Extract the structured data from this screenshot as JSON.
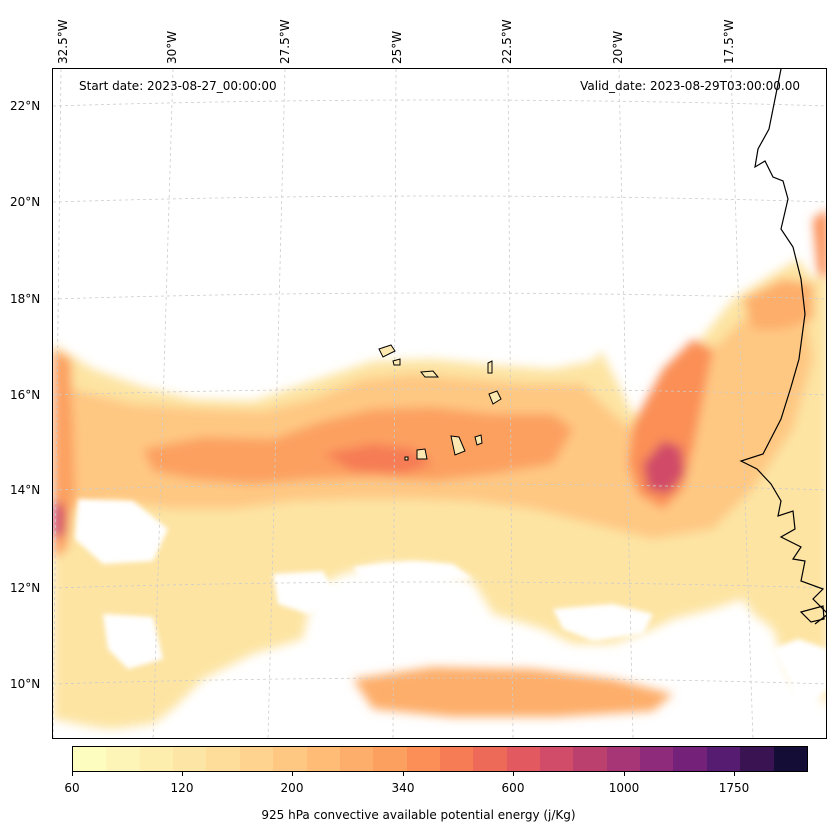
{
  "map": {
    "start_date": "Start date: 2023-08-27_00:00:00",
    "valid_date": "Valid_date: 2023-08-29T03:00:00.00",
    "lon_labels": [
      "32.5°W",
      "30°W",
      "27.5°W",
      "25°W",
      "22.5°W",
      "20°W",
      "17.5°W"
    ],
    "lat_labels": [
      "22°N",
      "20°N",
      "18°N",
      "16°N",
      "14°N",
      "12°N",
      "10°N"
    ],
    "lon_range": [
      -32.5,
      -15.5
    ],
    "lat_range": [
      8.9,
      22.8
    ],
    "field": "925 hPa CAPE",
    "land_color": "#ffffff",
    "gridlines": true
  },
  "colorbar": {
    "label": "925 hPa convective available potential energy (j/Kg)",
    "tick_labels": [
      "60",
      "120",
      "200",
      "340",
      "600",
      "1000",
      "1750"
    ],
    "colors": [
      "#fcfdbf",
      "#fcf5b7",
      "#fdeeae",
      "#fde6a5",
      "#fedd9b",
      "#fed38f",
      "#fec883",
      "#febc77",
      "#fdae6b",
      "#fca060",
      "#fb8f57",
      "#f67c55",
      "#ee6a58",
      "#e25a60",
      "#d14c68",
      "#bc406e",
      "#a63675",
      "#8e2b7a",
      "#742279",
      "#561c71",
      "#3a1452",
      "#140d36"
    ]
  }
}
